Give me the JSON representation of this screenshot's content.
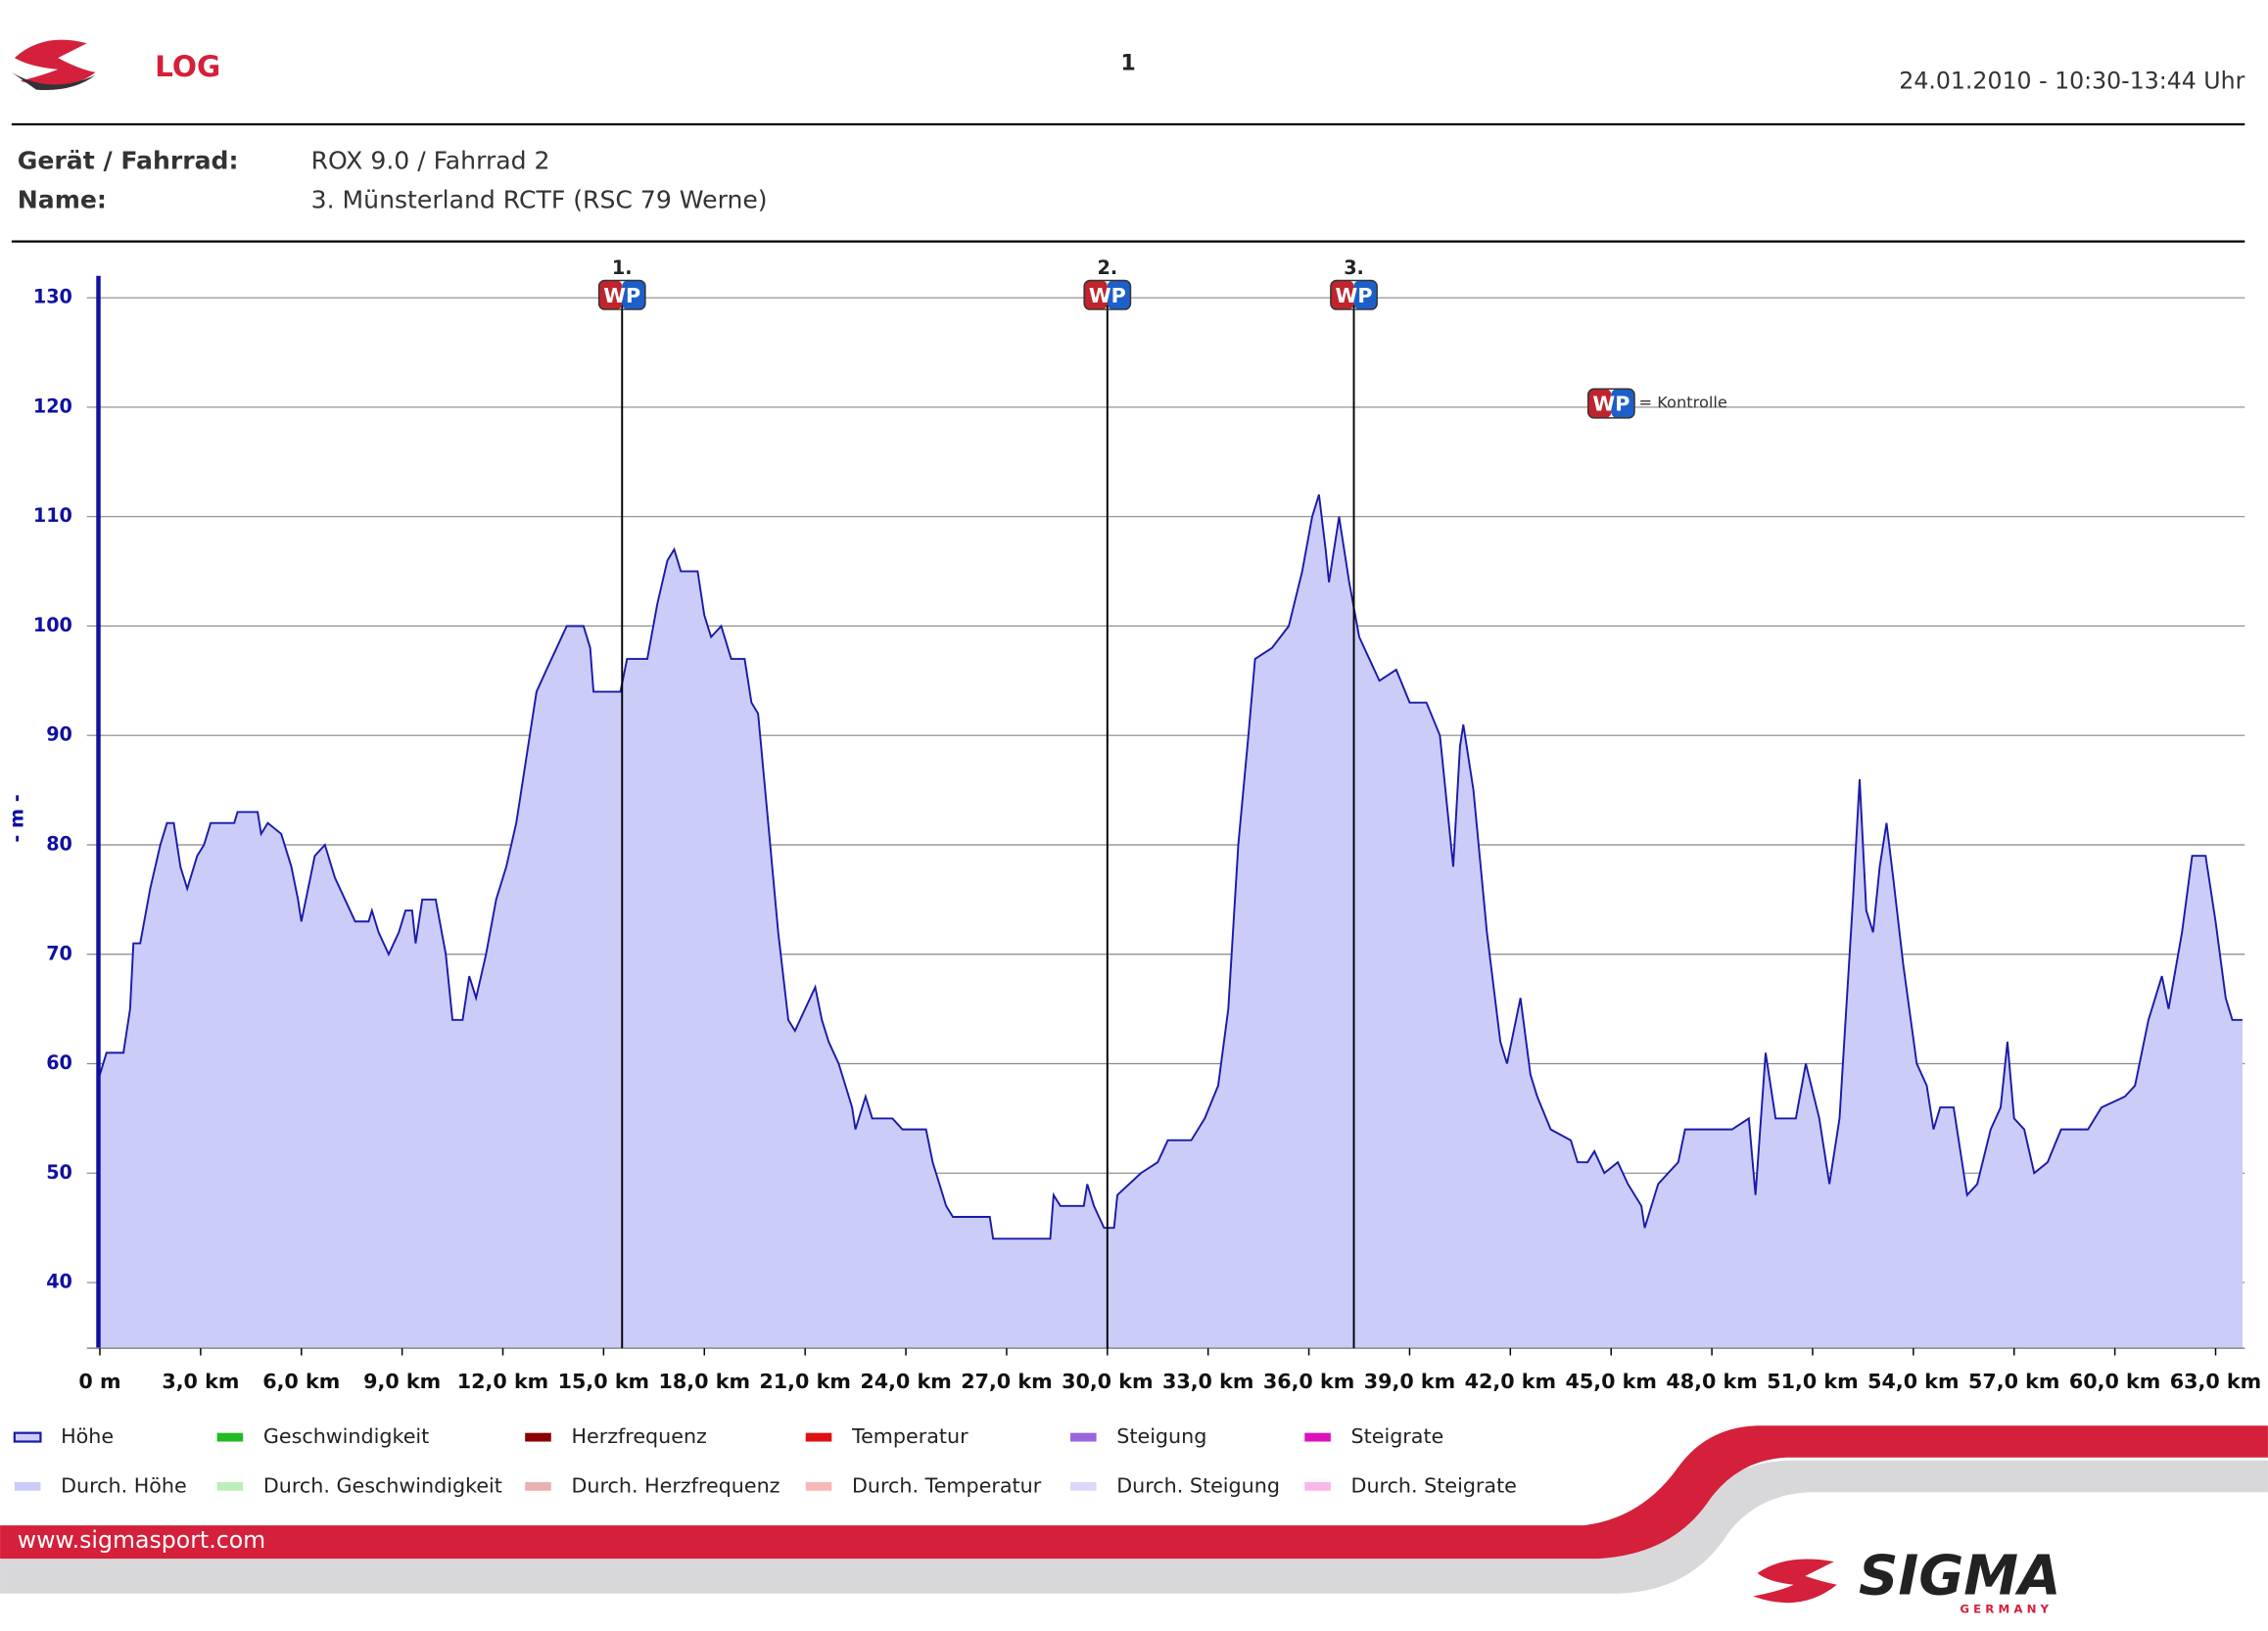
{
  "header": {
    "title": "LOG",
    "page": "1",
    "date": "24.01.2010 - 10:30-13:44 Uhr"
  },
  "info": [
    {
      "label": "Gerät / Fahrrad:",
      "value": "ROX 9.0 / Fahrrad 2"
    },
    {
      "label": "Name:",
      "value": "3. Münsterland RCTF (RSC 79 Werne)"
    }
  ],
  "chart_data": {
    "type": "area",
    "ylabel": "- m -",
    "x": [
      0,
      0.2,
      0.7,
      0.9,
      1.0,
      1.2,
      1.5,
      1.8,
      2.0,
      2.2,
      2.4,
      2.6,
      2.9,
      3.1,
      3.3,
      4.0,
      4.1,
      4.7,
      4.8,
      5.0,
      5.4,
      5.7,
      5.9,
      6.0,
      6.2,
      6.4,
      6.7,
      7.0,
      7.3,
      7.6,
      8.0,
      8.1,
      8.3,
      8.6,
      8.9,
      9.1,
      9.3,
      9.4,
      9.6,
      10.0,
      10.3,
      10.5,
      10.8,
      11.0,
      11.2,
      11.5,
      11.8,
      12.1,
      12.4,
      12.7,
      13.0,
      13.3,
      13.6,
      13.9,
      14.4,
      14.6,
      14.7,
      15.5,
      15.7,
      16.3,
      16.6,
      16.9,
      17.1,
      17.3,
      17.8,
      18.0,
      18.2,
      18.5,
      18.8,
      19.2,
      19.4,
      19.6,
      19.9,
      20.2,
      20.5,
      20.7,
      21.0,
      21.3,
      21.5,
      21.7,
      22.0,
      22.2,
      22.4,
      22.5,
      22.8,
      23.0,
      23.6,
      23.9,
      24.6,
      24.8,
      25.0,
      25.2,
      25.4,
      26.5,
      26.6,
      28.3,
      28.4,
      28.6,
      29.3,
      29.4,
      29.6,
      29.9,
      30.2,
      30.3,
      31.0,
      31.5,
      31.8,
      32.5,
      32.9,
      33.3,
      33.6,
      33.9,
      34.2,
      34.4,
      34.9,
      35.4,
      35.8,
      36.1,
      36.3,
      36.5,
      36.6,
      36.9,
      37.0,
      37.2,
      37.5,
      37.8,
      38.1,
      38.6,
      39.0,
      39.5,
      39.9,
      40.3,
      40.5,
      40.6,
      40.9,
      41.3,
      41.7,
      41.9,
      42.3,
      42.6,
      42.8,
      43.2,
      43.8,
      44.0,
      44.3,
      44.5,
      44.8,
      45.2,
      45.5,
      45.9,
      46.0,
      46.4,
      46.7,
      47.0,
      47.2,
      48.6,
      49.1,
      49.3,
      49.6,
      49.9,
      50.5,
      50.8,
      51.2,
      51.5,
      51.8,
      52.2,
      52.4,
      52.6,
      52.8,
      53.0,
      53.2,
      53.4,
      53.7,
      54.1,
      54.4,
      54.6,
      54.8,
      55.2,
      55.6,
      55.9,
      56.3,
      56.6,
      56.8,
      57.0,
      57.3,
      57.6,
      58.0,
      58.4,
      59.2,
      59.6,
      60.3,
      60.6,
      61.0,
      61.4,
      61.6,
      62.0,
      62.3,
      62.7,
      63.0,
      63.3,
      63.5,
      63.8
    ],
    "series": [
      {
        "name": "Höhe",
        "color": "#1a1aaa",
        "fill": "#ccccf8",
        "values": [
          59,
          61,
          61,
          65,
          71,
          71,
          76,
          80,
          82,
          82,
          78,
          76,
          79,
          80,
          82,
          82,
          83,
          83,
          81,
          82,
          81,
          78,
          75,
          73,
          76,
          79,
          80,
          77,
          75,
          73,
          73,
          74,
          72,
          70,
          72,
          74,
          74,
          71,
          75,
          75,
          70,
          64,
          64,
          68,
          66,
          70,
          75,
          78,
          82,
          88,
          94,
          96,
          98,
          100,
          100,
          98,
          94,
          94,
          97,
          97,
          102,
          106,
          107,
          105,
          105,
          101,
          99,
          100,
          97,
          97,
          93,
          92,
          82,
          72,
          64,
          63,
          65,
          67,
          64,
          62,
          60,
          58,
          56,
          54,
          57,
          55,
          55,
          54,
          54,
          51,
          49,
          47,
          46,
          46,
          44,
          44,
          48,
          47,
          47,
          49,
          47,
          45,
          45,
          48,
          50,
          51,
          53,
          53,
          55,
          58,
          65,
          80,
          90,
          97,
          98,
          100,
          105,
          110,
          112,
          107,
          104,
          110,
          108,
          104,
          99,
          97,
          95,
          96,
          93,
          93,
          90,
          78,
          89,
          91,
          85,
          72,
          62,
          60,
          66,
          59,
          57,
          54,
          53,
          51,
          51,
          52,
          50,
          51,
          49,
          47,
          45,
          49,
          50,
          51,
          54,
          54,
          55,
          48,
          61,
          55,
          55,
          60,
          55,
          49,
          55,
          75,
          86,
          74,
          72,
          78,
          82,
          77,
          69,
          60,
          58,
          54,
          56,
          56,
          48,
          49,
          54,
          56,
          62,
          55,
          54,
          50,
          51,
          54,
          54,
          56,
          57,
          58,
          64,
          68,
          65,
          72,
          79,
          79,
          73,
          66,
          64,
          64
        ]
      }
    ],
    "xlim": [
      0,
      63.8
    ],
    "ylim": [
      34,
      132
    ],
    "xticks": [
      {
        "value": 0,
        "label": "0 m"
      },
      {
        "value": 3,
        "label": "3,0 km"
      },
      {
        "value": 6,
        "label": "6,0 km"
      },
      {
        "value": 9,
        "label": "9,0 km"
      },
      {
        "value": 12,
        "label": "12,0 km"
      },
      {
        "value": 15,
        "label": "15,0 km"
      },
      {
        "value": 18,
        "label": "18,0 km"
      },
      {
        "value": 21,
        "label": "21,0 km"
      },
      {
        "value": 24,
        "label": "24,0 km"
      },
      {
        "value": 27,
        "label": "27,0 km"
      },
      {
        "value": 30,
        "label": "30,0 km"
      },
      {
        "value": 33,
        "label": "33,0 km"
      },
      {
        "value": 36,
        "label": "36,0 km"
      },
      {
        "value": 39,
        "label": "39,0 km"
      },
      {
        "value": 42,
        "label": "42,0 km"
      },
      {
        "value": 45,
        "label": "45,0 km"
      },
      {
        "value": 48,
        "label": "48,0 km"
      },
      {
        "value": 51,
        "label": "51,0 km"
      },
      {
        "value": 54,
        "label": "54,0 km"
      },
      {
        "value": 57,
        "label": "57,0 km"
      },
      {
        "value": 60,
        "label": "60,0 km"
      },
      {
        "value": 63,
        "label": "63,0 km"
      }
    ],
    "yticks": [
      40,
      50,
      60,
      70,
      80,
      90,
      100,
      110,
      120,
      130
    ],
    "grid": true,
    "waypoint_badge": "WP",
    "waypoint_legend": "= Kontrolle",
    "waypoints": [
      {
        "label": "1.",
        "x": 15.55
      },
      {
        "label": "2.",
        "x": 30.0
      },
      {
        "label": "3.",
        "x": 37.34
      }
    ],
    "legend_items": [
      {
        "name": "Geschwindigkeit",
        "color": "#22bb22"
      },
      {
        "name": "Herzfrequenz",
        "color": "#8b0000"
      },
      {
        "name": "Temperatur",
        "color": "#dd1111"
      },
      {
        "name": "Steigung",
        "color": "#9966dd"
      },
      {
        "name": "Steigrate",
        "color": "#dd11bb"
      },
      {
        "name": "Durch. Höhe",
        "color": "#ccccf8"
      },
      {
        "name": "Durch. Geschwindigkeit",
        "color": "#bbeebb"
      },
      {
        "name": "Durch. Herzfrequenz",
        "color": "#e8b0b0"
      },
      {
        "name": "Durch. Temperatur",
        "color": "#f8b8b8"
      },
      {
        "name": "Durch. Steigung",
        "color": "#ddd8f8"
      },
      {
        "name": "Durch. Steigrate",
        "color": "#f8b8e8"
      }
    ]
  },
  "footer": {
    "url": "www.sigmasport.com",
    "brand": "SIGMA",
    "country": "G E R M A N Y"
  }
}
